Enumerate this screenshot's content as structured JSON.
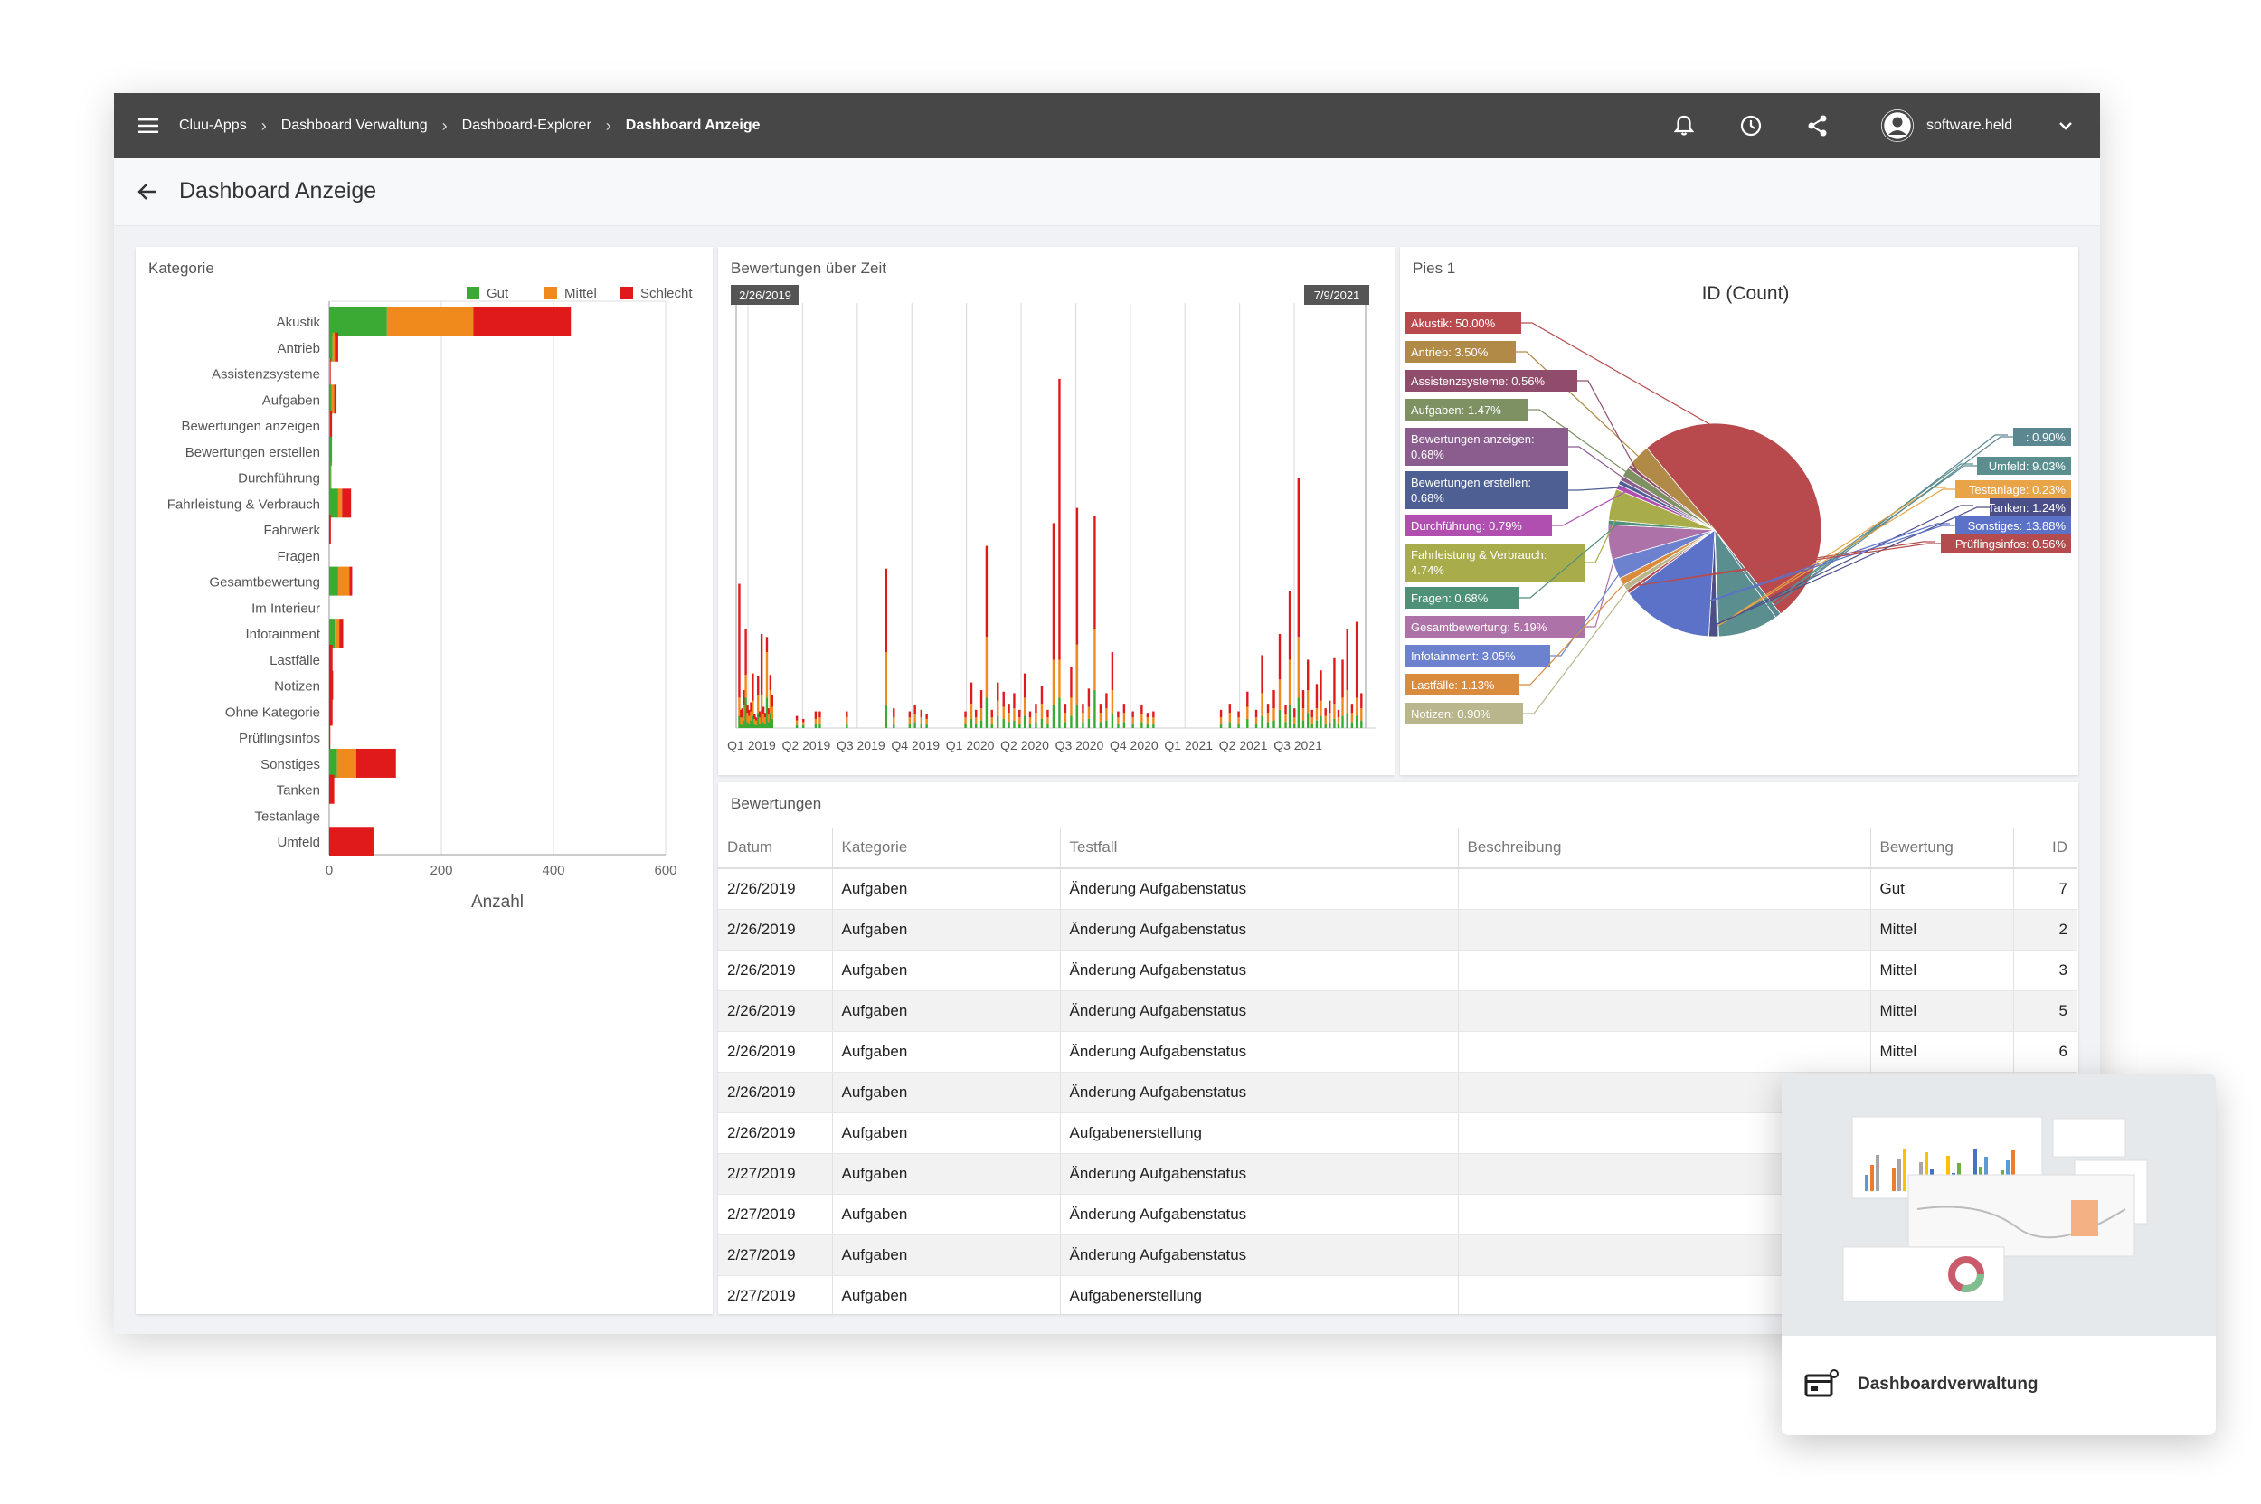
{
  "breadcrumb": [
    "Cluu-Apps",
    "Dashboard Verwaltung",
    "Dashboard-Explorer",
    "Dashboard Anzeige"
  ],
  "user": {
    "name": "software.held"
  },
  "page": {
    "title": "Dashboard Anzeige"
  },
  "icons": {
    "menu": "menu-icon",
    "notifications": "bell-icon",
    "history": "clock-icon",
    "share": "share-icon",
    "account": "account-icon",
    "expand": "chevron-down-icon",
    "back": "arrow-left-icon",
    "card": "dashboard-icon"
  },
  "colors": {
    "topbar": "#474747",
    "gut": "#3aaa35",
    "mittel": "#f08a1c",
    "schlecht": "#e0191b"
  },
  "panels": {
    "kategorie": "Kategorie",
    "zeit": "Bewertungen über Zeit",
    "pies": "Pies 1",
    "table": "Bewertungen"
  },
  "chart_data": [
    {
      "type": "bar",
      "orientation": "horizontal",
      "stacked": true,
      "categories": [
        "Akustik",
        "Antrieb",
        "Assistenzsysteme",
        "Aufgaben",
        "Bewertungen anzeigen",
        "Bewertungen erstellen",
        "Durchführung",
        "Fahrleistung & Verbrauch",
        "Fahrwerk",
        "Fragen",
        "Gesamtbewertung",
        "Im Interieur",
        "Infotainment",
        "Lastfälle",
        "Notizen",
        "Ohne Kategorie",
        "Prüflingsinfos",
        "Sonstiges",
        "Tanken",
        "Testanlage",
        "Umfeld"
      ],
      "series": [
        {
          "name": "Gut",
          "values": [
            103,
            6,
            0,
            4,
            0,
            5,
            3,
            16,
            0,
            0,
            16,
            0,
            10,
            0,
            0,
            0,
            0,
            14,
            0,
            0,
            0
          ]
        },
        {
          "name": "Mittel",
          "values": [
            154,
            4,
            2,
            5,
            1,
            0,
            1,
            7,
            0,
            0,
            20,
            0,
            8,
            0,
            0,
            0,
            0,
            34,
            0,
            0,
            0
          ]
        },
        {
          "name": "Schlecht",
          "values": [
            174,
            6,
            1,
            4,
            4,
            0,
            0,
            16,
            3,
            0,
            5,
            0,
            7,
            6,
            7,
            6,
            2,
            71,
            9,
            0,
            79
          ]
        }
      ],
      "xlabel": "Anzahl",
      "xlim": [
        0,
        600
      ],
      "xticks": [
        0,
        200,
        400,
        600
      ],
      "grid": true,
      "legend": "top-right"
    },
    {
      "type": "bar",
      "stacked": true,
      "x_range": [
        "2/26/2019",
        "7/9/2021"
      ],
      "range_labels": [
        "2/26/2019",
        "7/9/2021"
      ],
      "ticks": [
        "Q1 2019",
        "Q2 2019",
        "Q3 2019",
        "Q4 2019",
        "Q1 2020",
        "Q2 2020",
        "Q3 2020",
        "Q4 2020",
        "Q1 2021",
        "Q2 2021",
        "Q3 2021"
      ],
      "spikes": [
        {
          "t": 0.5,
          "g": 8,
          "m": 12,
          "s": 75
        },
        {
          "t": 0.8,
          "g": 3,
          "m": 4,
          "s": 5
        },
        {
          "t": 1.0,
          "g": 2,
          "m": 5,
          "s": 6
        },
        {
          "t": 1.3,
          "g": 5,
          "m": 10,
          "s": 10
        },
        {
          "t": 1.6,
          "g": 20,
          "m": 15,
          "s": 30
        },
        {
          "t": 1.9,
          "g": 4,
          "m": 6,
          "s": 5
        },
        {
          "t": 2.2,
          "g": 3,
          "m": 5,
          "s": 4
        },
        {
          "t": 2.5,
          "g": 5,
          "m": 6,
          "s": 6
        },
        {
          "t": 2.8,
          "g": 8,
          "m": 10,
          "s": 18
        },
        {
          "t": 3.1,
          "g": 3,
          "m": 3,
          "s": 3
        },
        {
          "t": 3.4,
          "g": 2,
          "m": 3,
          "s": 2
        },
        {
          "t": 3.7,
          "g": 10,
          "m": 12,
          "s": 12
        },
        {
          "t": 4.0,
          "g": 3,
          "m": 4,
          "s": 4
        },
        {
          "t": 4.3,
          "g": 12,
          "m": 10,
          "s": 40
        },
        {
          "t": 4.6,
          "g": 4,
          "m": 5,
          "s": 5
        },
        {
          "t": 4.9,
          "g": 3,
          "m": 4,
          "s": 3
        },
        {
          "t": 5.2,
          "g": 20,
          "m": 30,
          "s": 10
        },
        {
          "t": 5.5,
          "g": 4,
          "m": 5,
          "s": 4
        },
        {
          "t": 5.8,
          "g": 10,
          "m": 15,
          "s": 10
        },
        {
          "t": 6.1,
          "g": 6,
          "m": 8,
          "s": 8
        },
        {
          "t": 10.3,
          "g": 2,
          "m": 3,
          "s": 3
        },
        {
          "t": 11.4,
          "g": 2,
          "m": 2,
          "s": 2
        },
        {
          "t": 13.5,
          "g": 3,
          "m": 3,
          "s": 5
        },
        {
          "t": 14.2,
          "g": 3,
          "m": 4,
          "s": 4
        },
        {
          "t": 18.8,
          "g": 3,
          "m": 4,
          "s": 4
        },
        {
          "t": 25.5,
          "g": 15,
          "m": 35,
          "s": 55
        },
        {
          "t": 26.8,
          "g": 3,
          "m": 4,
          "s": 6
        },
        {
          "t": 29.5,
          "g": 3,
          "m": 4,
          "s": 4
        },
        {
          "t": 30.4,
          "g": 4,
          "m": 5,
          "s": 6
        },
        {
          "t": 31.5,
          "g": 3,
          "m": 4,
          "s": 5
        },
        {
          "t": 32.4,
          "g": 3,
          "m": 3,
          "s": 3
        },
        {
          "t": 39.0,
          "g": 3,
          "m": 4,
          "s": 4
        },
        {
          "t": 40.0,
          "g": 6,
          "m": 10,
          "s": 14
        },
        {
          "t": 40.8,
          "g": 3,
          "m": 4,
          "s": 5
        },
        {
          "t": 41.7,
          "g": 5,
          "m": 8,
          "s": 12
        },
        {
          "t": 42.6,
          "g": 20,
          "m": 40,
          "s": 60
        },
        {
          "t": 43.5,
          "g": 3,
          "m": 4,
          "s": 5
        },
        {
          "t": 44.5,
          "g": 8,
          "m": 10,
          "s": 12
        },
        {
          "t": 45.5,
          "g": 6,
          "m": 8,
          "s": 10
        },
        {
          "t": 46.4,
          "g": 4,
          "m": 6,
          "s": 6
        },
        {
          "t": 47.3,
          "g": 5,
          "m": 8,
          "s": 10
        },
        {
          "t": 48.2,
          "g": 3,
          "m": 4,
          "s": 5
        },
        {
          "t": 49.1,
          "g": 8,
          "m": 12,
          "s": 16
        },
        {
          "t": 50.0,
          "g": 3,
          "m": 4,
          "s": 4
        },
        {
          "t": 51.0,
          "g": 4,
          "m": 6,
          "s": 6
        },
        {
          "t": 52.0,
          "g": 6,
          "m": 10,
          "s": 12
        },
        {
          "t": 53.0,
          "g": 3,
          "m": 4,
          "s": 5
        },
        {
          "t": 54.0,
          "g": 15,
          "m": 30,
          "s": 90
        },
        {
          "t": 55.0,
          "g": 20,
          "m": 25,
          "s": 185
        },
        {
          "t": 56.0,
          "g": 4,
          "m": 6,
          "s": 6
        },
        {
          "t": 57.0,
          "g": 8,
          "m": 12,
          "s": 20
        },
        {
          "t": 58.0,
          "g": 15,
          "m": 40,
          "s": 90
        },
        {
          "t": 59.0,
          "g": 4,
          "m": 6,
          "s": 6
        },
        {
          "t": 60.0,
          "g": 6,
          "m": 8,
          "s": 12
        },
        {
          "t": 61.0,
          "g": 25,
          "m": 40,
          "s": 75
        },
        {
          "t": 62.0,
          "g": 4,
          "m": 6,
          "s": 6
        },
        {
          "t": 63.0,
          "g": 5,
          "m": 8,
          "s": 10
        },
        {
          "t": 64.0,
          "g": 10,
          "m": 15,
          "s": 25
        },
        {
          "t": 65.0,
          "g": 3,
          "m": 4,
          "s": 4
        },
        {
          "t": 66.0,
          "g": 4,
          "m": 6,
          "s": 6
        },
        {
          "t": 67.5,
          "g": 3,
          "m": 4,
          "s": 4
        },
        {
          "t": 69.0,
          "g": 4,
          "m": 5,
          "s": 6
        },
        {
          "t": 70.0,
          "g": 3,
          "m": 4,
          "s": 3
        },
        {
          "t": 71.0,
          "g": 3,
          "m": 4,
          "s": 4
        },
        {
          "t": 82.5,
          "g": 3,
          "m": 4,
          "s": 5
        },
        {
          "t": 84.0,
          "g": 4,
          "m": 6,
          "s": 6
        },
        {
          "t": 85.5,
          "g": 3,
          "m": 4,
          "s": 4
        },
        {
          "t": 87.0,
          "g": 6,
          "m": 8,
          "s": 10
        },
        {
          "t": 88.5,
          "g": 3,
          "m": 4,
          "s": 5
        },
        {
          "t": 89.5,
          "g": 8,
          "m": 15,
          "s": 25
        },
        {
          "t": 90.5,
          "g": 4,
          "m": 6,
          "s": 6
        },
        {
          "t": 91.5,
          "g": 5,
          "m": 8,
          "s": 12
        },
        {
          "t": 92.5,
          "g": 12,
          "m": 20,
          "s": 30
        },
        {
          "t": 93.5,
          "g": 4,
          "m": 5,
          "s": 6
        },
        {
          "t": 94.2,
          "g": 15,
          "m": 30,
          "s": 45
        },
        {
          "t": 95.0,
          "g": 3,
          "m": 4,
          "s": 6
        },
        {
          "t": 95.7,
          "g": 20,
          "m": 40,
          "s": 105
        },
        {
          "t": 96.5,
          "g": 5,
          "m": 8,
          "s": 12
        },
        {
          "t": 97.3,
          "g": 10,
          "m": 15,
          "s": 20
        },
        {
          "t": 98.0,
          "g": 3,
          "m": 4,
          "s": 5
        },
        {
          "t": 98.8,
          "g": 5,
          "m": 8,
          "s": 16
        },
        {
          "t": 99.5,
          "g": 8,
          "m": 10,
          "s": 20
        },
        {
          "t": 100.3,
          "g": 3,
          "m": 5,
          "s": 5
        },
        {
          "t": 101.0,
          "g": 4,
          "m": 6,
          "s": 8
        },
        {
          "t": 101.8,
          "g": 6,
          "m": 10,
          "s": 30
        },
        {
          "t": 102.5,
          "g": 3,
          "m": 4,
          "s": 5
        },
        {
          "t": 103.2,
          "g": 8,
          "m": 12,
          "s": 25
        },
        {
          "t": 104.0,
          "g": 10,
          "m": 15,
          "s": 40
        },
        {
          "t": 104.8,
          "g": 4,
          "m": 6,
          "s": 6
        },
        {
          "t": 105.6,
          "g": 8,
          "m": 12,
          "s": 50
        },
        {
          "t": 106.4,
          "g": 5,
          "m": 8,
          "s": 10
        }
      ],
      "xlim": [
        0,
        109
      ],
      "ylim": [
        0,
        280
      ]
    },
    {
      "type": "pie",
      "title": "ID (Count)",
      "slices": [
        {
          "label": "Akustik: 50.00%",
          "value": 50.0,
          "color": "#b84a4e"
        },
        {
          "label": ": 0.90%",
          "value": 0.9,
          "color": "#5b8790"
        },
        {
          "label": "Umfeld: 9.03%",
          "value": 9.03,
          "color": "#5b8f8f"
        },
        {
          "label": "Testanlage: 0.23%",
          "value": 0.23,
          "color": "#e8a446"
        },
        {
          "label": "Tanken: 1.24%",
          "value": 1.24,
          "color": "#4b4f88"
        },
        {
          "label": "Sonstiges: 13.88%",
          "value": 13.88,
          "color": "#5c72c9"
        },
        {
          "label": "Prüflingsinfos: 0.56%",
          "value": 0.56,
          "color": "#b44c4f"
        },
        {
          "label": "Notizen: 0.90%",
          "value": 0.9,
          "color": "#b9b68d"
        },
        {
          "label": "Lastfälle: 1.13%",
          "value": 1.13,
          "color": "#d98b3e"
        },
        {
          "label": "Infotainment: 3.05%",
          "value": 3.05,
          "color": "#6d82ce"
        },
        {
          "label": "Gesamtbewertung: 5.19%",
          "value": 5.19,
          "color": "#ad72a8"
        },
        {
          "label": "Fragen: 0.68%",
          "value": 0.68,
          "color": "#4e9078"
        },
        {
          "label": "Fahrleistung & Verbrauch: 4.74%",
          "value": 4.74,
          "color": "#a9ac4b"
        },
        {
          "label": "Durchführung: 0.79%",
          "value": 0.79,
          "color": "#b04fb0"
        },
        {
          "label": "Bewertungen erstellen: 0.68%",
          "value": 0.68,
          "color": "#4d5f93"
        },
        {
          "label": "Bewertungen anzeigen: 0.68%",
          "value": 0.68,
          "color": "#8b5c8e"
        },
        {
          "label": "Aufgaben: 1.47%",
          "value": 1.47,
          "color": "#7d9163"
        },
        {
          "label": "Assistenzsysteme: 0.56%",
          "value": 0.56,
          "color": "#8f4d6b"
        },
        {
          "label": "Antrieb: 3.50%",
          "value": 3.5,
          "color": "#b28a48"
        }
      ]
    }
  ],
  "table": {
    "columns": [
      "Datum",
      "Kategorie",
      "Testfall",
      "Beschreibung",
      "Bewertung",
      "ID"
    ],
    "rows": [
      [
        "2/26/2019",
        "Aufgaben",
        "Änderung Aufgabenstatus",
        "",
        "Gut",
        "7"
      ],
      [
        "2/26/2019",
        "Aufgaben",
        "Änderung Aufgabenstatus",
        "",
        "Mittel",
        "2"
      ],
      [
        "2/26/2019",
        "Aufgaben",
        "Änderung Aufgabenstatus",
        "",
        "Mittel",
        "3"
      ],
      [
        "2/26/2019",
        "Aufgaben",
        "Änderung Aufgabenstatus",
        "",
        "Mittel",
        "5"
      ],
      [
        "2/26/2019",
        "Aufgaben",
        "Änderung Aufgabenstatus",
        "",
        "Mittel",
        "6"
      ],
      [
        "2/26/2019",
        "Aufgaben",
        "Änderung Aufgabenstatus",
        "",
        "",
        ""
      ],
      [
        "2/26/2019",
        "Aufgaben",
        "Aufgabenerstellung",
        "",
        "",
        ""
      ],
      [
        "2/27/2019",
        "Aufgaben",
        "Änderung Aufgabenstatus",
        "",
        "",
        ""
      ],
      [
        "2/27/2019",
        "Aufgaben",
        "Änderung Aufgabenstatus",
        "",
        "",
        ""
      ],
      [
        "2/27/2019",
        "Aufgaben",
        "Änderung Aufgabenstatus",
        "",
        "",
        ""
      ],
      [
        "2/27/2019",
        "Aufgaben",
        "Aufgabenerstellung",
        "",
        "",
        ""
      ]
    ]
  },
  "card": {
    "label": "Dashboardverwaltung"
  }
}
